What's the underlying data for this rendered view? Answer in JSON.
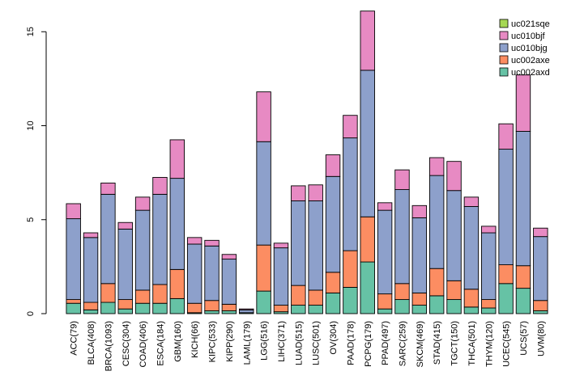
{
  "chart_data": {
    "type": "bar",
    "stacked": true,
    "title": "",
    "xlabel": "",
    "ylabel": "",
    "ylim": [
      0,
      16
    ],
    "yticks": [
      0,
      5,
      10,
      15
    ],
    "legend_position": "top-right",
    "categories": [
      "ACC(79)",
      "BLCA(408)",
      "BRCA(1093)",
      "CESC(304)",
      "COAD(406)",
      "ESCA(184)",
      "GBM(160)",
      "KICH(66)",
      "KIPC(533)",
      "KIPP(290)",
      "LAML(179)",
      "LGG(516)",
      "LIHC(371)",
      "LUAD(515)",
      "LUSC(501)",
      "OV(304)",
      "PAAD(178)",
      "PCPG(179)",
      "PPAD(497)",
      "SARC(259)",
      "SKCM(469)",
      "STAD(415)",
      "TGCT(150)",
      "THCA(501)",
      "THYM(120)",
      "UCEC(545)",
      "UCS(57)",
      "UVM(80)"
    ],
    "series": [
      {
        "name": "uc002axd",
        "color": "#66c2a5",
        "values": [
          0.55,
          0.2,
          0.6,
          0.25,
          0.55,
          0.55,
          0.8,
          0.05,
          0.15,
          0.15,
          0.05,
          1.2,
          0.1,
          0.45,
          0.45,
          1.1,
          1.4,
          2.75,
          0.25,
          0.75,
          0.45,
          0.95,
          0.75,
          0.35,
          0.3,
          1.6,
          1.35,
          0.15
        ]
      },
      {
        "name": "uc002axe",
        "color": "#fc8d62",
        "values": [
          0.2,
          0.4,
          1.0,
          0.5,
          0.7,
          1.0,
          1.55,
          0.5,
          0.55,
          0.35,
          0.0,
          2.45,
          0.35,
          1.05,
          0.8,
          1.1,
          1.95,
          2.4,
          0.8,
          0.85,
          0.65,
          1.45,
          1.0,
          0.95,
          0.45,
          1.0,
          1.2,
          0.55
        ]
      },
      {
        "name": "uc010bjg",
        "color": "#8da0cb",
        "values": [
          4.3,
          3.45,
          4.75,
          3.75,
          4.25,
          4.8,
          4.85,
          3.15,
          2.9,
          2.4,
          0.15,
          5.5,
          3.05,
          4.5,
          4.75,
          5.1,
          6.0,
          7.8,
          4.45,
          5.0,
          4.0,
          4.95,
          4.8,
          4.4,
          3.55,
          6.15,
          7.15,
          3.4
        ]
      },
      {
        "name": "uc010bjf",
        "color": "#e78ac3",
        "values": [
          0.8,
          0.25,
          0.6,
          0.35,
          0.7,
          0.9,
          2.05,
          0.35,
          0.3,
          0.25,
          0.05,
          2.65,
          0.25,
          0.8,
          0.85,
          1.15,
          1.2,
          3.15,
          0.4,
          1.05,
          0.65,
          0.95,
          1.55,
          0.5,
          0.35,
          1.35,
          3.0,
          0.45
        ]
      },
      {
        "name": "uc021sqe",
        "color": "#a6d854",
        "values": [
          0,
          0,
          0,
          0,
          0,
          0,
          0,
          0,
          0,
          0,
          0,
          0,
          0,
          0,
          0,
          0,
          0,
          0,
          0,
          0,
          0,
          0,
          0,
          0,
          0,
          0,
          0,
          0
        ]
      }
    ]
  }
}
